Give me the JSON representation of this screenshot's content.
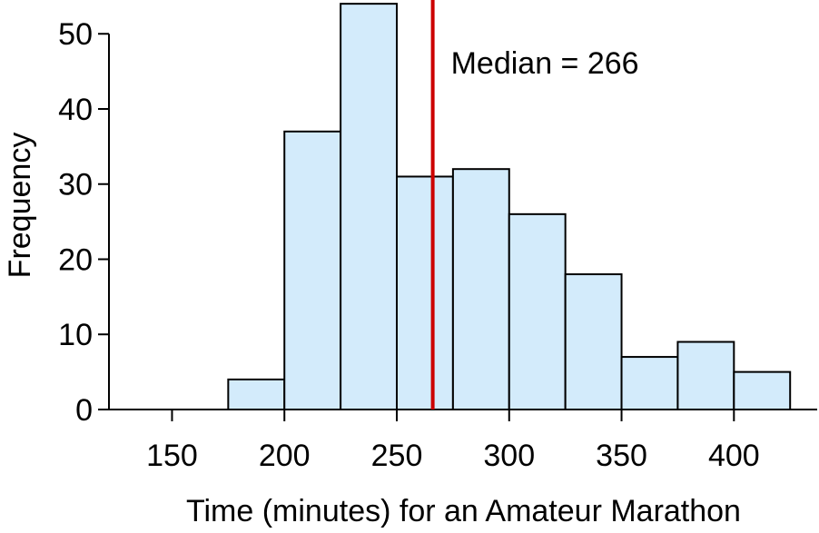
{
  "chart_data": {
    "type": "bar",
    "subtype": "histogram",
    "title": "",
    "xlabel": "Time (minutes) for an Amateur Marathon",
    "ylabel": "Frequency",
    "bins": [
      {
        "start": 175,
        "end": 200,
        "count": 4
      },
      {
        "start": 200,
        "end": 225,
        "count": 37
      },
      {
        "start": 225,
        "end": 250,
        "count": 54
      },
      {
        "start": 250,
        "end": 275,
        "count": 31
      },
      {
        "start": 275,
        "end": 300,
        "count": 32
      },
      {
        "start": 300,
        "end": 325,
        "count": 26
      },
      {
        "start": 325,
        "end": 350,
        "count": 18
      },
      {
        "start": 350,
        "end": 375,
        "count": 7
      },
      {
        "start": 375,
        "end": 400,
        "count": 9
      },
      {
        "start": 400,
        "end": 425,
        "count": 5
      }
    ],
    "xticks": [
      150,
      200,
      250,
      300,
      350,
      400
    ],
    "yticks": [
      0,
      10,
      20,
      30,
      40,
      50
    ],
    "xlim": [
      128,
      433
    ],
    "ylim": [
      0,
      54.5
    ],
    "median": 266,
    "median_label": "Median = 266",
    "grid": false,
    "colors": {
      "bar_fill": "#d3ebfb",
      "bar_stroke": "#000000",
      "median_line": "#cc0000",
      "axis": "#000000"
    }
  }
}
